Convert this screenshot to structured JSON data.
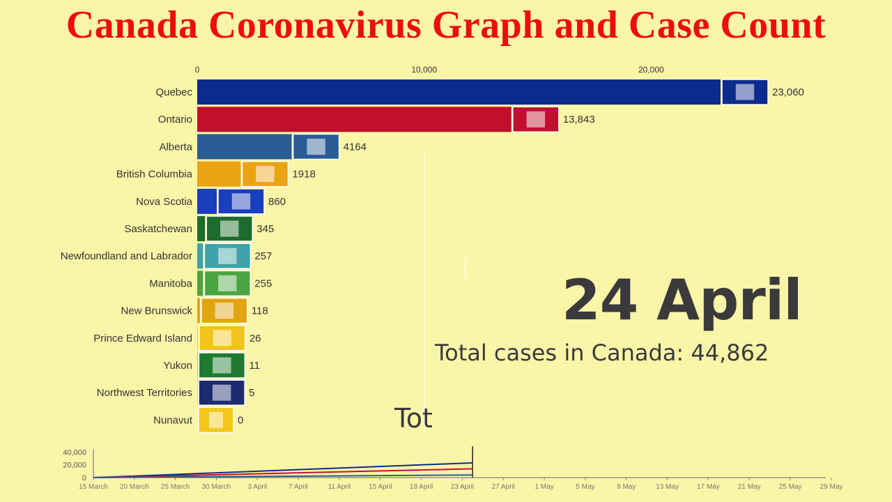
{
  "page": {
    "title": "Canada Coronavirus Graph and Case Count",
    "date_label": "24 April",
    "total_label": "Total cases in Canada: 44,862",
    "ghost_label": "Tot"
  },
  "chart_data": [
    {
      "type": "bar",
      "orientation": "horizontal",
      "axis_ticks": [
        0,
        10000,
        20000
      ],
      "axis_tick_labels": [
        "0",
        "10,000",
        "20,000"
      ],
      "xlim": [
        0,
        24000
      ],
      "categories": [
        "Quebec",
        "Ontario",
        "Alberta",
        "British Columbia",
        "Nova Scotia",
        "Saskatchewan",
        "Newfoundland and Labrador",
        "Manitoba",
        "New Brunswick",
        "Prince Edward Island",
        "Yukon",
        "Northwest Territories",
        "Nunavut"
      ],
      "values": [
        23060,
        13843,
        4164,
        1918,
        860,
        345,
        257,
        255,
        118,
        26,
        11,
        5,
        0
      ],
      "value_labels": [
        "23,060",
        "13,843",
        "4164",
        "1918",
        "860",
        "345",
        "257",
        "255",
        "118",
        "26",
        "11",
        "5",
        "0"
      ],
      "colors": [
        "#0c2b8c",
        "#c1102e",
        "#2a5d96",
        "#eba314",
        "#1a3fbd",
        "#1d6b2e",
        "#3da3a8",
        "#4aa540",
        "#e0a511",
        "#f2c31a",
        "#1e7a30",
        "#1e2b70",
        "#f3c718"
      ],
      "flags": [
        "quebec-flag",
        "ontario-flag",
        "alberta-flag",
        "british-columbia-flag",
        "nova-scotia-flag",
        "saskatchewan-flag",
        "newfoundland-and-labrador-flag",
        "manitoba-flag",
        "new-brunswick-flag",
        "prince-edward-island-flag",
        "yukon-flag",
        "northwest-territories-flag",
        "nunavut-flag"
      ]
    },
    {
      "type": "line",
      "y_ticks": [
        0,
        20000,
        40000
      ],
      "y_tick_labels": [
        "0",
        "20,000",
        "40,000"
      ],
      "ylim": [
        0,
        44862
      ],
      "x_tick_labels": [
        "15 March",
        "20 March",
        "25 March",
        "30 March",
        "3 April",
        "7 April",
        "11 April",
        "15 April",
        "19 April",
        "23 April",
        "27 April",
        "1 May",
        "5 May",
        "9 May",
        "13 May",
        "17 May",
        "21 May",
        "25 May",
        "29 May"
      ],
      "current_date": "24 April",
      "series": [
        {
          "color": "#0c2b8c",
          "values": [
            0,
            23060
          ]
        },
        {
          "color": "#c1102e",
          "values": [
            0,
            13843
          ]
        },
        {
          "color": "#2a5d96",
          "values": [
            0,
            4164
          ]
        }
      ]
    }
  ]
}
